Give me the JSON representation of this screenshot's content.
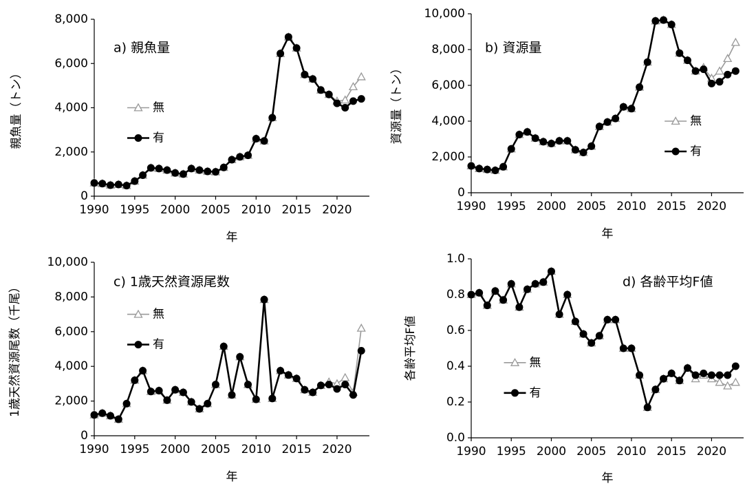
{
  "chart_data": [
    {
      "type": "line",
      "title": "a) 親魚量",
      "y_label": "親魚量（トン）",
      "x_label": "年",
      "legend": "center left",
      "x": [
        1990,
        1991,
        1992,
        1993,
        1994,
        1995,
        1996,
        1997,
        1998,
        1999,
        2000,
        2001,
        2002,
        2003,
        2004,
        2005,
        2006,
        2007,
        2008,
        2009,
        2010,
        2011,
        2012,
        2013,
        2014,
        2015,
        2016,
        2017,
        2018,
        2019,
        2020,
        2021,
        2022,
        2023
      ],
      "xlim": [
        1990,
        2024
      ],
      "xticks": [
        1990,
        1995,
        2000,
        2005,
        2010,
        2015,
        2020
      ],
      "ylim": [
        0,
        8000
      ],
      "yticks": [
        0,
        {
          "value": 2000,
          "label": "2,000"
        },
        {
          "value": 4000,
          "label": "4,000"
        },
        {
          "value": 6000,
          "label": "6,000"
        },
        {
          "value": 8000,
          "label": "8,000"
        }
      ],
      "series": [
        {
          "name": "無",
          "color": "#999999",
          "marker": "triangle",
          "values": [
            600,
            570,
            500,
            530,
            480,
            680,
            950,
            1280,
            1250,
            1180,
            1050,
            1000,
            1250,
            1180,
            1120,
            1100,
            1300,
            1650,
            1780,
            1850,
            2600,
            2500,
            3550,
            6450,
            7200,
            6700,
            5500,
            5300,
            4800,
            4600,
            4300,
            4350,
            4950,
            5400
          ]
        },
        {
          "name": "有",
          "color": "#000000",
          "marker": "circle",
          "values": [
            600,
            570,
            500,
            530,
            480,
            680,
            950,
            1280,
            1250,
            1180,
            1050,
            1000,
            1250,
            1180,
            1120,
            1100,
            1300,
            1650,
            1780,
            1850,
            2600,
            2500,
            3550,
            6450,
            7200,
            6700,
            5500,
            5300,
            4800,
            4600,
            4200,
            4000,
            4300,
            4400
          ]
        }
      ]
    },
    {
      "type": "line",
      "title": "b) 資源量",
      "y_label": "資源量（トン）",
      "x_label": "年",
      "legend": "center right",
      "x": [
        1990,
        1991,
        1992,
        1993,
        1994,
        1995,
        1996,
        1997,
        1998,
        1999,
        2000,
        2001,
        2002,
        2003,
        2004,
        2005,
        2006,
        2007,
        2008,
        2009,
        2010,
        2011,
        2012,
        2013,
        2014,
        2015,
        2016,
        2017,
        2018,
        2019,
        2020,
        2021,
        2022,
        2023
      ],
      "xlim": [
        1990,
        2024
      ],
      "xticks": [
        1990,
        1995,
        2000,
        2005,
        2010,
        2015,
        2020
      ],
      "ylim": [
        0,
        10000
      ],
      "yticks": [
        0,
        {
          "value": 2000,
          "label": "2,000"
        },
        {
          "value": 4000,
          "label": "4,000"
        },
        {
          "value": 6000,
          "label": "6,000"
        },
        {
          "value": 8000,
          "label": "8,000"
        },
        {
          "value": 10000,
          "label": "10,000"
        }
      ],
      "series": [
        {
          "name": "無",
          "color": "#999999",
          "marker": "triangle",
          "values": [
            1500,
            1350,
            1300,
            1250,
            1450,
            2450,
            3250,
            3400,
            3050,
            2850,
            2750,
            2900,
            2900,
            2400,
            2250,
            2600,
            3700,
            3950,
            4150,
            4800,
            4700,
            5900,
            7300,
            9600,
            9650,
            9400,
            7800,
            7400,
            6800,
            7000,
            6400,
            6800,
            7500,
            8400
          ]
        },
        {
          "name": "有",
          "color": "#000000",
          "marker": "circle",
          "values": [
            1500,
            1350,
            1300,
            1250,
            1450,
            2450,
            3250,
            3400,
            3050,
            2850,
            2750,
            2900,
            2900,
            2400,
            2250,
            2600,
            3700,
            3950,
            4150,
            4800,
            4700,
            5900,
            7300,
            9600,
            9650,
            9400,
            7800,
            7400,
            6800,
            6900,
            6100,
            6200,
            6600,
            6800
          ]
        }
      ]
    },
    {
      "type": "line",
      "title": "c) 1歳天然資源尾数",
      "y_label": "1歳天然資源尾数（千尾）",
      "x_label": "年",
      "legend": "upper left",
      "x": [
        1990,
        1991,
        1992,
        1993,
        1994,
        1995,
        1996,
        1997,
        1998,
        1999,
        2000,
        2001,
        2002,
        2003,
        2004,
        2005,
        2006,
        2007,
        2008,
        2009,
        2010,
        2011,
        2012,
        2013,
        2014,
        2015,
        2016,
        2017,
        2018,
        2019,
        2020,
        2021,
        2022,
        2023
      ],
      "xlim": [
        1990,
        2024
      ],
      "xticks": [
        1990,
        1995,
        2000,
        2005,
        2010,
        2015,
        2020
      ],
      "ylim": [
        0,
        10000
      ],
      "yticks": [
        0,
        {
          "value": 2000,
          "label": "2,000"
        },
        {
          "value": 4000,
          "label": "4,000"
        },
        {
          "value": 6000,
          "label": "6,000"
        },
        {
          "value": 8000,
          "label": "8,000"
        },
        {
          "value": 10000,
          "label": "10,000"
        }
      ],
      "series": [
        {
          "name": "無",
          "color": "#999999",
          "marker": "triangle",
          "values": [
            1200,
            1300,
            1150,
            950,
            1850,
            3200,
            3750,
            2550,
            2600,
            2050,
            2650,
            2500,
            1950,
            1550,
            1850,
            2950,
            5150,
            2350,
            4550,
            2950,
            2100,
            7850,
            2150,
            3750,
            3500,
            3300,
            2650,
            2500,
            2900,
            3100,
            3000,
            3350,
            2500,
            6200
          ]
        },
        {
          "name": "有",
          "color": "#000000",
          "marker": "circle",
          "values": [
            1200,
            1300,
            1150,
            950,
            1850,
            3200,
            3750,
            2550,
            2600,
            2050,
            2650,
            2500,
            1950,
            1550,
            1850,
            2950,
            5150,
            2350,
            4550,
            2950,
            2100,
            7850,
            2150,
            3750,
            3500,
            3300,
            2650,
            2500,
            2900,
            2950,
            2700,
            2950,
            2350,
            4900
          ]
        }
      ]
    },
    {
      "type": "line",
      "title": "d) 各齢平均F値",
      "y_label": "各齢平均F値",
      "x_label": "年",
      "legend": "lower left",
      "x": [
        1990,
        1991,
        1992,
        1993,
        1994,
        1995,
        1996,
        1997,
        1998,
        1999,
        2000,
        2001,
        2002,
        2003,
        2004,
        2005,
        2006,
        2007,
        2008,
        2009,
        2010,
        2011,
        2012,
        2013,
        2014,
        2015,
        2016,
        2017,
        2018,
        2019,
        2020,
        2021,
        2022,
        2023
      ],
      "xlim": [
        1990,
        2024
      ],
      "xticks": [
        1990,
        1995,
        2000,
        2005,
        2010,
        2015,
        2020
      ],
      "ylim": [
        0,
        1
      ],
      "yticks": [
        {
          "value": 0,
          "label": "0.0"
        },
        0.2,
        0.4,
        0.6,
        0.8,
        {
          "value": 1,
          "label": "1.0"
        }
      ],
      "series": [
        {
          "name": "無",
          "color": "#999999",
          "marker": "triangle",
          "values": [
            0.8,
            0.81,
            0.74,
            0.82,
            0.77,
            0.86,
            0.73,
            0.83,
            0.86,
            0.87,
            0.93,
            0.69,
            0.8,
            0.65,
            0.58,
            0.53,
            0.57,
            0.66,
            0.66,
            0.5,
            0.5,
            0.35,
            0.17,
            0.27,
            0.33,
            0.36,
            0.32,
            0.39,
            0.33,
            0.35,
            0.33,
            0.31,
            0.29,
            0.31
          ]
        },
        {
          "name": "有",
          "color": "#000000",
          "marker": "circle",
          "values": [
            0.8,
            0.81,
            0.74,
            0.82,
            0.77,
            0.86,
            0.73,
            0.83,
            0.86,
            0.87,
            0.93,
            0.69,
            0.8,
            0.65,
            0.58,
            0.53,
            0.57,
            0.66,
            0.66,
            0.5,
            0.5,
            0.35,
            0.17,
            0.27,
            0.33,
            0.36,
            0.32,
            0.39,
            0.35,
            0.36,
            0.35,
            0.35,
            0.35,
            0.4
          ]
        }
      ]
    }
  ]
}
